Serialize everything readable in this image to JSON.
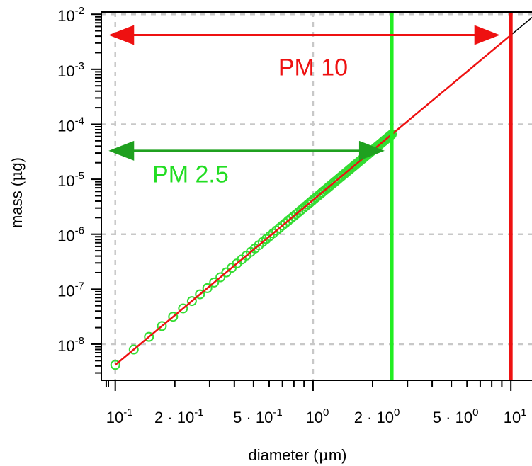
{
  "chart_data": {
    "type": "scatter",
    "xlabel_parts": [
      "diameter (",
      "μ",
      "m)"
    ],
    "ylabel_parts": [
      "mass (",
      "μ",
      "g)"
    ],
    "x_scale": "log",
    "y_scale": "log",
    "xlim": [
      0.085,
      13
    ],
    "ylim": [
      2.2e-09,
      0.011
    ],
    "grid": true,
    "x_ticks": [
      {
        "value": 0.1,
        "mant": "",
        "base": "10",
        "exp": "-1"
      },
      {
        "value": 0.2,
        "mant": "2 · ",
        "base": "10",
        "exp": "-1"
      },
      {
        "value": 0.5,
        "mant": "5 · ",
        "base": "10",
        "exp": "-1"
      },
      {
        "value": 1,
        "mant": "",
        "base": "10",
        "exp": "0"
      },
      {
        "value": 2,
        "mant": "2 · ",
        "base": "10",
        "exp": "0"
      },
      {
        "value": 5,
        "mant": "5 · ",
        "base": "10",
        "exp": "0"
      },
      {
        "value": 10,
        "mant": "",
        "base": "10",
        "exp": "1"
      }
    ],
    "y_ticks": [
      {
        "value": 1e-08,
        "base": "10",
        "exp": "-8"
      },
      {
        "value": 1e-07,
        "base": "10",
        "exp": "-7"
      },
      {
        "value": 1e-06,
        "base": "10",
        "exp": "-6"
      },
      {
        "value": 1e-05,
        "base": "10",
        "exp": "-5"
      },
      {
        "value": 0.0001,
        "base": "10",
        "exp": "-4"
      },
      {
        "value": 0.001,
        "base": "10",
        "exp": "-3"
      },
      {
        "value": 0.01,
        "base": "10",
        "exp": "-2"
      }
    ],
    "x_grid": [
      0.1,
      1,
      10
    ],
    "y_grid": [
      1e-08,
      1e-06,
      0.0001,
      0.01
    ],
    "mass_coefficient": 4.19e-06,
    "mass_exponent": 3,
    "black_curve_x": [
      2.5,
      13
    ],
    "red_curve_x": [
      0.1,
      10
    ],
    "points": {
      "x_start": 0.1,
      "x_end": 2.5,
      "count": 101,
      "color": "#33dd33"
    },
    "cutoffs": [
      {
        "label": "PM 2.5",
        "x": 2.5,
        "color": "#22ee22",
        "arrow_color": "#1fa01f",
        "arrow_from": 0.085,
        "arrow_to": 2.3,
        "arrow_y": 3.3e-05,
        "label_color": "#22dd22"
      },
      {
        "label": "PM 10",
        "x": 10,
        "color": "#ee1111",
        "arrow_color": "#ee1111",
        "arrow_from": 0.085,
        "arrow_to": 8.8,
        "arrow_y": 0.0042,
        "label_color": "#ee1111"
      }
    ],
    "annotations": [
      {
        "text": "PM 10",
        "x": 1.0,
        "y": 0.0011,
        "color": "#ee1111"
      },
      {
        "text": "PM 2.5",
        "x": 0.24,
        "y": 1.25e-05,
        "color": "#22dd22"
      }
    ],
    "colors": {
      "curve_red": "#ee1111",
      "curve_black": "#000000",
      "points": "#33dd33",
      "grid": "#c8c8c8"
    }
  }
}
